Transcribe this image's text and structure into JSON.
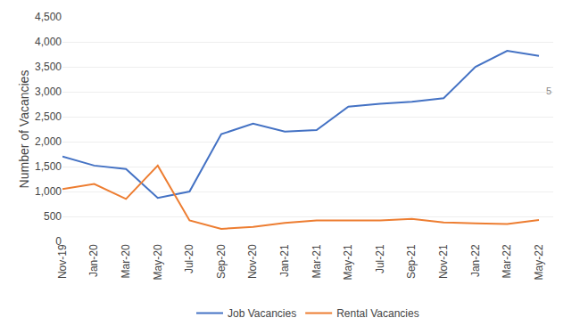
{
  "chart_data": {
    "type": "line",
    "categories": [
      "Nov-19",
      "Jan-20",
      "Mar-20",
      "May-20",
      "Jul-20",
      "Sep-20",
      "Nov-20",
      "Jan-21",
      "Mar-21",
      "May-21",
      "Jul-21",
      "Sep-21",
      "Nov-21",
      "Jan-22",
      "Mar-22",
      "May-22"
    ],
    "series": [
      {
        "name": "Job Vacancies",
        "color": "#4472C4",
        "values": [
          1700,
          1520,
          1450,
          870,
          1000,
          2150,
          2360,
          2200,
          2230,
          2700,
          2760,
          2800,
          2870,
          3500,
          3820,
          3720
        ]
      },
      {
        "name": "Rental Vacancies",
        "color": "#ED7D31",
        "values": [
          1050,
          1150,
          850,
          1520,
          420,
          250,
          290,
          370,
          420,
          420,
          420,
          450,
          380,
          360,
          350,
          430
        ]
      }
    ],
    "ylabel": "Number of Vacancies",
    "ylim": [
      0,
      4500
    ],
    "yticks": [
      0,
      500,
      {
        "value": 1000,
        "label": "1,000"
      },
      {
        "value": 1500,
        "label": "1,500"
      },
      {
        "value": 2000,
        "label": "2,000"
      },
      {
        "value": 2500,
        "label": "2,500"
      },
      {
        "value": 3000,
        "label": "3,000"
      },
      {
        "value": 3500,
        "label": "3,500"
      },
      {
        "value": 4000,
        "label": "4,000"
      },
      {
        "value": 4500,
        "label": "4,500"
      }
    ],
    "annotations": [
      {
        "text": "5",
        "y": 3020
      }
    ],
    "grid": true,
    "legend": "bottom"
  }
}
